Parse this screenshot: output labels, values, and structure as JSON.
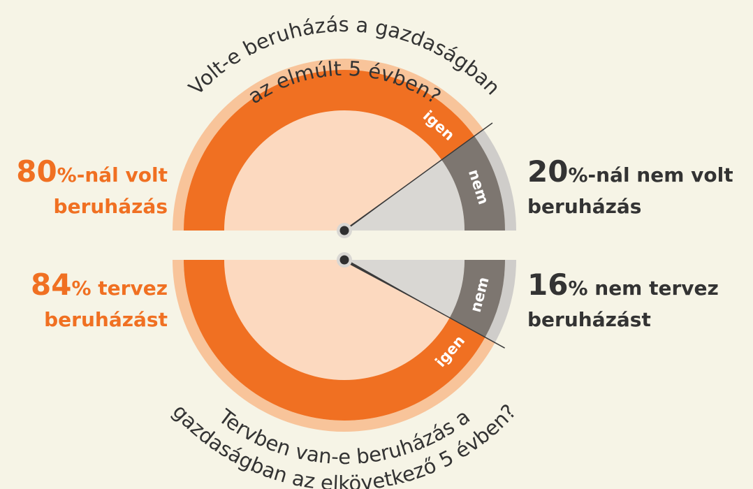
{
  "chart_data": [
    {
      "type": "pie",
      "half": "top",
      "title_lines": [
        "Volt-e beruházás a gazdaságban",
        "az elmúlt 5 évben?"
      ],
      "categories": [
        "igen",
        "nem"
      ],
      "values": [
        80,
        20
      ],
      "colors": [
        "#f07022",
        "#7d7670"
      ],
      "inner_colors": [
        "#fcd9bf",
        "#d9d7d3"
      ],
      "rim_colors": [
        "#f8c49a",
        "#cfcdca"
      ],
      "label_suffixes": [
        "%-nál volt",
        "%-nál nem volt"
      ],
      "label_second_lines": [
        "beruházás",
        "beruházás"
      ]
    },
    {
      "type": "pie",
      "half": "bottom",
      "title_lines": [
        "Tervben van-e beruházás a",
        "gazdaságban az elkövetkező 5 évben?"
      ],
      "categories": [
        "igen",
        "nem"
      ],
      "values": [
        84,
        16
      ],
      "colors": [
        "#f07022",
        "#7d7670"
      ],
      "inner_colors": [
        "#fcd9bf",
        "#d9d7d3"
      ],
      "rim_colors": [
        "#f8c49a",
        "#cfcdca"
      ],
      "label_suffixes": [
        "% tervez",
        "% nem tervez"
      ],
      "label_second_lines": [
        "beruházást",
        "beruházást"
      ]
    }
  ]
}
